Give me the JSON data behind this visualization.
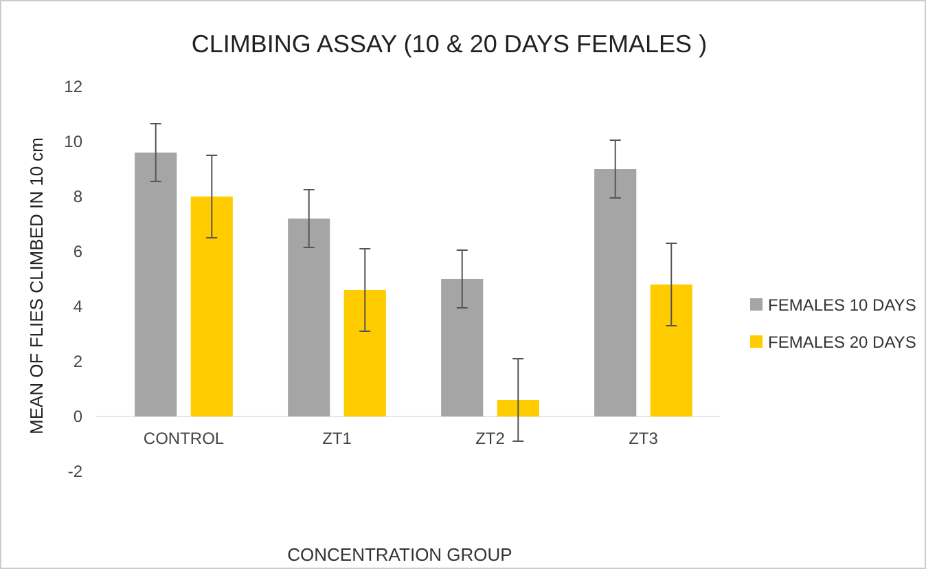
{
  "chart_data": {
    "type": "bar",
    "title": "CLIMBING ASSAY (10 & 20 DAYS FEMALES )",
    "xlabel": "CONCENTRATION GROUP",
    "ylabel": "MEAN OF FLIES CLIMBED IN 10 cm",
    "categories": [
      "CONTROL",
      "ZT1",
      "ZT2",
      "ZT3"
    ],
    "series": [
      {
        "name": "FEMALES 10 DAYS",
        "color": "#a5a5a5",
        "values": [
          9.6,
          7.2,
          5.0,
          9.0
        ],
        "errors": [
          1.05,
          1.05,
          1.05,
          1.05
        ]
      },
      {
        "name": "FEMALES 20 DAYS",
        "color": "#ffcc00",
        "values": [
          8.0,
          4.6,
          0.6,
          4.8
        ],
        "errors": [
          1.5,
          1.5,
          1.5,
          1.5
        ]
      }
    ],
    "ylim": [
      -2,
      12
    ],
    "yticks": [
      -2,
      0,
      2,
      4,
      6,
      8,
      10,
      12
    ],
    "grid": false,
    "legend": "right"
  }
}
